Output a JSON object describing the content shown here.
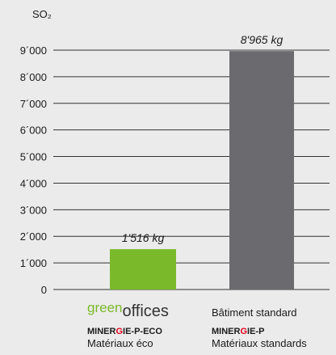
{
  "chart_data": {
    "type": "bar",
    "y_label": "SO₂",
    "categories": [
      [
        "green",
        "offices"
      ],
      [
        "Bâtiment standard"
      ]
    ],
    "standards": [
      [
        "MINER",
        "G",
        "IE-P-ECO"
      ],
      [
        "MINER",
        "G",
        "IE-P"
      ]
    ],
    "materials": [
      "Matériaux éco",
      "Matériaux standards"
    ],
    "values": [
      1516,
      8965
    ],
    "value_labels": [
      "1'516 kg",
      "8'965 kg"
    ],
    "colors": [
      "#7ab929",
      "#6b6a6e"
    ],
    "ylim": [
      0,
      9000
    ],
    "yticks": [
      0,
      {
        "value": 1000,
        "label": "1´000"
      },
      {
        "value": 2000,
        "label": "2´000"
      },
      {
        "value": 3000,
        "label": "3´000"
      },
      {
        "value": 4000,
        "label": "4´000"
      },
      {
        "value": 5000,
        "label": "5´000"
      },
      {
        "value": 6000,
        "label": "6´000"
      },
      {
        "value": 7000,
        "label": "7´000"
      },
      {
        "value": 8000,
        "label": "8´000"
      },
      {
        "value": 9000,
        "label": "9´000"
      }
    ],
    "grid": true
  }
}
